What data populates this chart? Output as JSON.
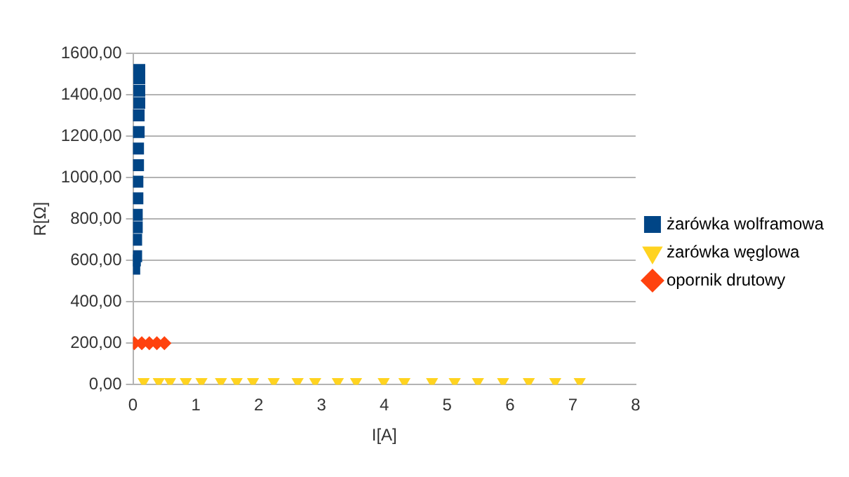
{
  "chart_data": {
    "type": "scatter",
    "xlabel": "I[A]",
    "ylabel": "R[Ω]",
    "xlim": [
      0,
      8
    ],
    "xticks": [
      0,
      1,
      2,
      3,
      4,
      5,
      6,
      7,
      8
    ],
    "ylim": [
      0,
      1600
    ],
    "yticks": [
      {
        "value": 0,
        "label": "0,00"
      },
      {
        "value": 200,
        "label": "200,00"
      },
      {
        "value": 400,
        "label": "400,00"
      },
      {
        "value": 600,
        "label": "600,00"
      },
      {
        "value": 800,
        "label": "800,00"
      },
      {
        "value": 1000,
        "label": "1000,00"
      },
      {
        "value": 1200,
        "label": "1200,00"
      },
      {
        "value": 1400,
        "label": "1400,00"
      },
      {
        "value": 1600,
        "label": "1600,00"
      }
    ],
    "grid": "y",
    "legend": "right",
    "series": [
      {
        "name": "żarówka wolframowa",
        "color": "#004586",
        "marker": "square",
        "x": [
          0.02,
          0.03,
          0.05,
          0.05,
          0.06,
          0.06,
          0.07,
          0.07,
          0.08,
          0.08,
          0.09,
          0.09,
          0.1,
          0.1,
          0.1,
          0.1
        ],
        "values": [
          560,
          600,
          620,
          700,
          760,
          820,
          900,
          980,
          1060,
          1140,
          1220,
          1300,
          1360,
          1420,
          1480,
          1520
        ]
      },
      {
        "name": "żarówka węglowa",
        "color": "#ffd320",
        "marker": "triangle",
        "x": [
          0.17,
          0.41,
          0.59,
          0.84,
          1.09,
          1.4,
          1.65,
          1.91,
          2.24,
          2.62,
          2.9,
          3.26,
          3.55,
          3.99,
          4.32,
          4.76,
          5.12,
          5.49,
          5.89,
          6.3,
          6.72,
          7.11
        ],
        "values": [
          15,
          15,
          15,
          15,
          15,
          15,
          15,
          15,
          15,
          15,
          15,
          15,
          15,
          15,
          15,
          15,
          15,
          15,
          15,
          15,
          15,
          15
        ]
      },
      {
        "name": "opornik drutowy",
        "color": "#ff420e",
        "marker": "diamond",
        "x": [
          0.02,
          0.14,
          0.26,
          0.38,
          0.5
        ],
        "values": [
          200,
          200,
          200,
          200,
          200
        ]
      }
    ]
  }
}
